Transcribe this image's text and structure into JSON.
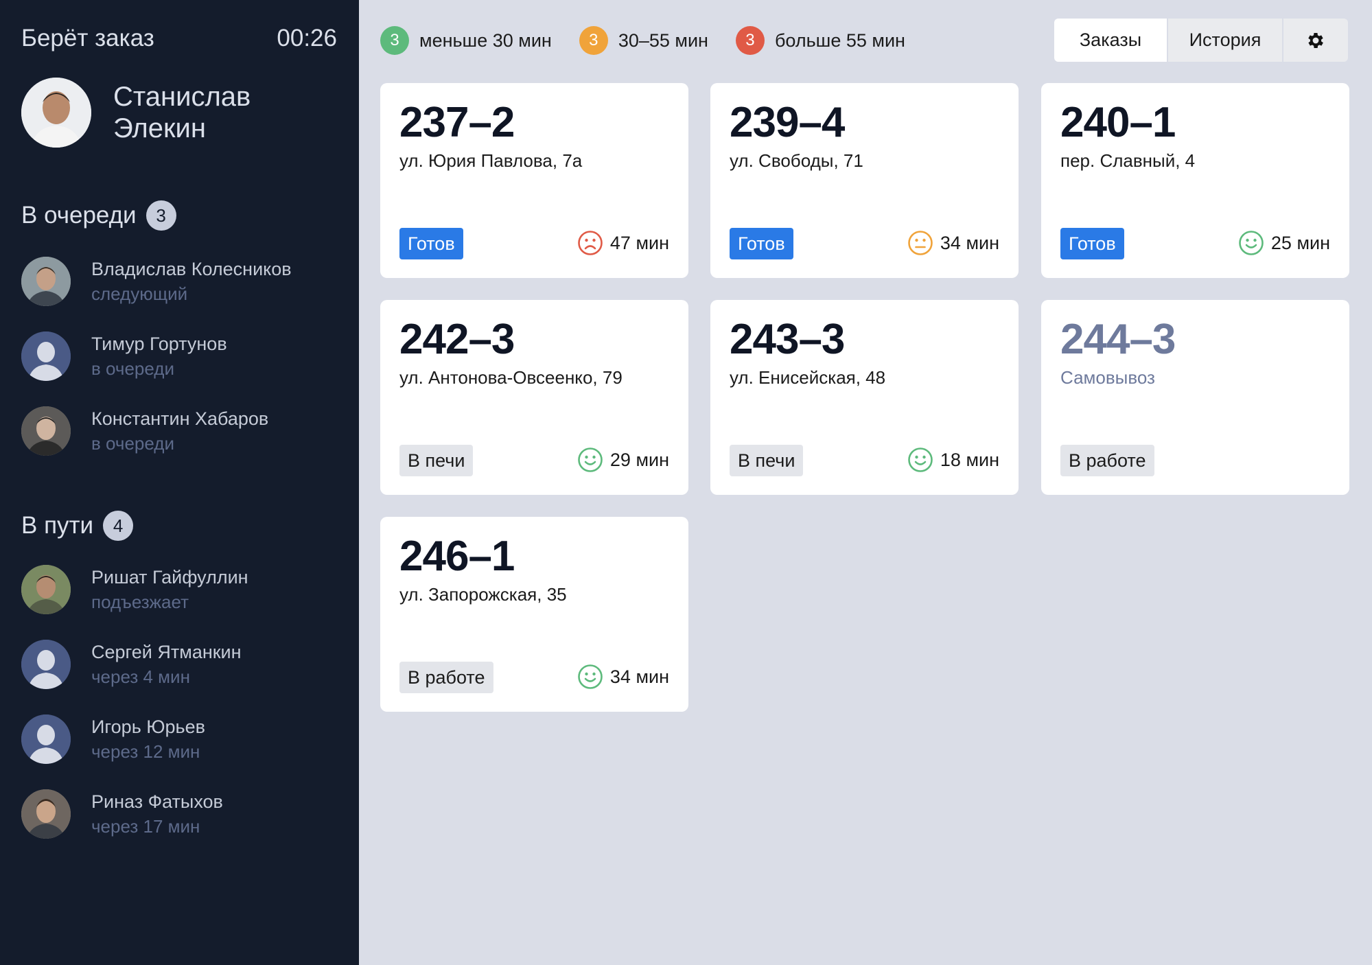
{
  "colors": {
    "sidebar_bg": "#141c2c",
    "page_bg": "#dadde7",
    "green": "#5dba7c",
    "orange": "#f0a33a",
    "red": "#e05a46",
    "ready_blue": "#2a7ae6"
  },
  "sidebar": {
    "taking_label": "Берёт заказ",
    "timer": "00:26",
    "courier_name": "Станислав Элекин",
    "queue": {
      "title": "В очереди",
      "count": "3",
      "people": [
        {
          "name": "Владислав Колесников",
          "status": "следующий",
          "avatar": "photo"
        },
        {
          "name": "Тимур Гортунов",
          "status": "в очереди",
          "avatar": "placeholder"
        },
        {
          "name": "Константин Хабаров",
          "status": "в очереди",
          "avatar": "photo"
        }
      ]
    },
    "on_way": {
      "title": "В пути",
      "count": "4",
      "people": [
        {
          "name": "Ришат Гайфуллин",
          "status": "подъезжает",
          "avatar": "photo"
        },
        {
          "name": "Сергей Ятманкин",
          "status": "через 4 мин",
          "avatar": "placeholder"
        },
        {
          "name": "Игорь Юрьев",
          "status": "через 12 мин",
          "avatar": "placeholder"
        },
        {
          "name": "Риназ Фатыхов",
          "status": "через 17 мин",
          "avatar": "photo"
        }
      ]
    }
  },
  "legend": [
    {
      "count": "3",
      "label": "меньше 30 мин",
      "color": "#5dba7c"
    },
    {
      "count": "3",
      "label": "30–55 мин",
      "color": "#f0a33a"
    },
    {
      "count": "3",
      "label": "больше 55 мин",
      "color": "#e05a46"
    }
  ],
  "tabs": {
    "orders": "Заказы",
    "history": "История",
    "settings_icon": "gear-icon"
  },
  "orders": [
    {
      "number": "237–2",
      "address": "ул. Юрия Павлова, 7а",
      "status": "Готов",
      "status_type": "ready",
      "time": "47 мин",
      "mood": "sad"
    },
    {
      "number": "239–4",
      "address": "ул. Свободы, 71",
      "status": "Готов",
      "status_type": "ready",
      "time": "34 мин",
      "mood": "neutral"
    },
    {
      "number": "240–1",
      "address": "пер. Славный, 4",
      "status": "Готов",
      "status_type": "ready",
      "time": "25 мин",
      "mood": "happy"
    },
    {
      "number": "242–3",
      "address": "ул. Антонова-Овсеенко, 79",
      "status": "В печи",
      "status_type": "grey",
      "time": "29 мин",
      "mood": "happy"
    },
    {
      "number": "243–3",
      "address": "ул. Енисейская, 48",
      "status": "В печи",
      "status_type": "grey",
      "time": "18 мин",
      "mood": "happy"
    },
    {
      "number": "244–3",
      "address": "Самовывоз",
      "status": "В работе",
      "status_type": "grey",
      "time": "",
      "mood": ""
    },
    {
      "number": "246–1",
      "address": "ул. Запорожская, 35",
      "status": "В работе",
      "status_type": "grey",
      "time": "34 мин",
      "mood": "happy"
    }
  ]
}
